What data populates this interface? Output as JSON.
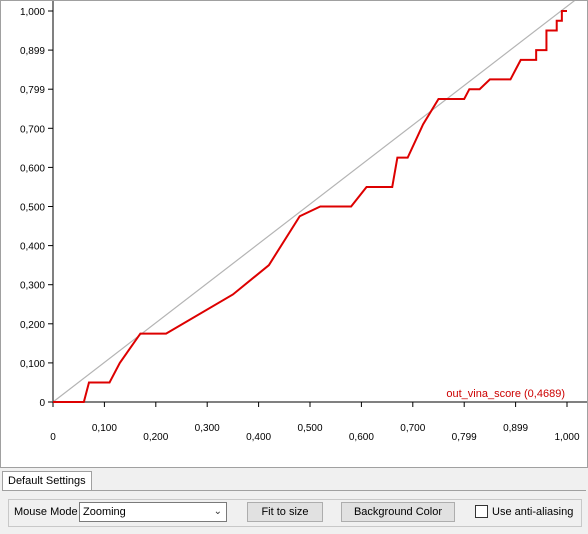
{
  "chart_data": {
    "type": "line",
    "x_ticks": [
      "0",
      "0,100",
      "0,200",
      "0,300",
      "0,400",
      "0,500",
      "0,600",
      "0,700",
      "0,799",
      "0,899",
      "1,000"
    ],
    "y_ticks": [
      "0",
      "0,100",
      "0,200",
      "0,300",
      "0,400",
      "0,500",
      "0,600",
      "0,700",
      "0,799",
      "0,899",
      "1,000"
    ],
    "xlim": [
      0,
      1
    ],
    "ylim": [
      0,
      1
    ],
    "reference_line": [
      [
        0,
        0
      ],
      [
        1,
        1
      ]
    ],
    "series": [
      {
        "name": "out_vina_score (0,4689)",
        "color": "#dd0000",
        "points": [
          [
            0,
            0
          ],
          [
            0.06,
            0
          ],
          [
            0.07,
            0.05
          ],
          [
            0.11,
            0.05
          ],
          [
            0.13,
            0.1
          ],
          [
            0.17,
            0.175
          ],
          [
            0.22,
            0.175
          ],
          [
            0.35,
            0.275
          ],
          [
            0.42,
            0.35
          ],
          [
            0.48,
            0.475
          ],
          [
            0.52,
            0.5
          ],
          [
            0.58,
            0.5
          ],
          [
            0.61,
            0.55
          ],
          [
            0.66,
            0.55
          ],
          [
            0.67,
            0.625
          ],
          [
            0.69,
            0.625
          ],
          [
            0.72,
            0.71
          ],
          [
            0.75,
            0.775
          ],
          [
            0.8,
            0.775
          ],
          [
            0.81,
            0.8
          ],
          [
            0.83,
            0.8
          ],
          [
            0.85,
            0.825
          ],
          [
            0.89,
            0.825
          ],
          [
            0.9,
            0.85
          ],
          [
            0.91,
            0.875
          ],
          [
            0.94,
            0.875
          ],
          [
            0.94,
            0.9
          ],
          [
            0.96,
            0.9
          ],
          [
            0.96,
            0.95
          ],
          [
            0.98,
            0.95
          ],
          [
            0.98,
            0.975
          ],
          [
            0.99,
            0.975
          ],
          [
            0.99,
            1.0
          ],
          [
            1.0,
            1.0
          ]
        ]
      }
    ],
    "reference_color": "#b4b4b4",
    "grid": false,
    "legend_placement": "bottom-right"
  },
  "tabs": {
    "default_settings": "Default Settings"
  },
  "settings": {
    "mouse_mode_label": "Mouse Mode",
    "mouse_mode_value": "Zooming",
    "fit_to_size": "Fit to size",
    "background_color": "Background Color",
    "anti_aliasing_label": "Use anti-aliasing",
    "anti_aliasing_checked": false
  },
  "icons": {
    "dropdown": "chevron-down-icon"
  }
}
